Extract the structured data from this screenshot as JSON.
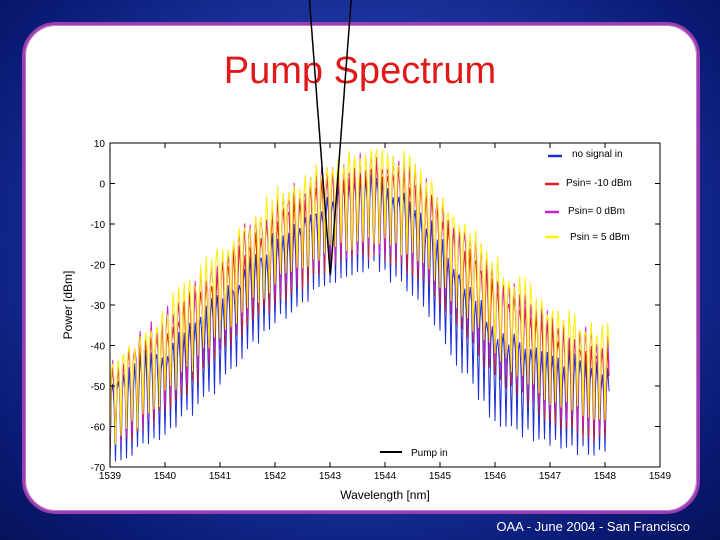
{
  "slide": {
    "title": "Pump Spectrum",
    "footer": "OAA - June 2004 - San Francisco",
    "background_color": "#1f3aa6",
    "card_border_color": "#9b3fb0",
    "title_color": "#e01818"
  },
  "chart_data": {
    "type": "line",
    "title": "",
    "xlabel": "Wavelength [nm]",
    "ylabel": "Power [dBm]",
    "xlim": [
      1539,
      1549
    ],
    "ylim": [
      -70,
      10
    ],
    "xticks": [
      "1539",
      "1540",
      "1541",
      "1542",
      "1543",
      "1544",
      "1545",
      "1546",
      "1547",
      "1548",
      "1549"
    ],
    "yticks": [
      "10",
      "0",
      "-10",
      "-20",
      "-30",
      "-40",
      "-50",
      "-60",
      "-70"
    ],
    "grid": false,
    "legend_position": "top-right",
    "series": [
      {
        "name": "no signal in",
        "color": "#1a2fd6",
        "envelope": {
          "x": [
            1539,
            1540,
            1541,
            1542,
            1543,
            1543.8,
            1544.5,
            1545,
            1546,
            1547,
            1548
          ],
          "y": [
            -62,
            -55,
            -42,
            -27,
            -17,
            -13,
            -19,
            -30,
            -51,
            -57,
            -60
          ]
        }
      },
      {
        "name": "Psin= -10 dBm",
        "color": "#e02020",
        "envelope": {
          "x": [
            1539,
            1540,
            1541,
            1542,
            1543,
            1543.8,
            1544.5,
            1545,
            1546,
            1547,
            1548
          ],
          "y": [
            -59,
            -49,
            -35,
            -22,
            -13,
            -10,
            -14,
            -22,
            -40,
            -51,
            -56
          ]
        }
      },
      {
        "name": "Psin= 0 dBm",
        "color": "#d020d0",
        "envelope": {
          "x": [
            1539,
            1540,
            1541,
            1542,
            1543,
            1543.8,
            1544.5,
            1545,
            1546,
            1547,
            1548
          ],
          "y": [
            -59,
            -47,
            -32,
            -19,
            -11,
            -8,
            -12,
            -20,
            -37,
            -49,
            -54
          ]
        }
      },
      {
        "name": "Psin = 5 dBm",
        "color": "#ffee00",
        "envelope": {
          "x": [
            1539,
            1540,
            1541,
            1542,
            1543,
            1543.8,
            1544.5,
            1545,
            1546,
            1547,
            1548
          ],
          "y": [
            -58,
            -45,
            -30,
            -17,
            -9,
            -6,
            -10,
            -18,
            -34,
            -46,
            -51
          ]
        }
      },
      {
        "name": "Pump in",
        "color": "#000000",
        "peaks": {
          "x": [
            1542.9,
            1543.0,
            1543.1
          ],
          "y": [
            -42,
            -36,
            -40
          ]
        },
        "x_range": [
          1542.4,
          1543.7
        ],
        "baseline": -62
      }
    ]
  }
}
